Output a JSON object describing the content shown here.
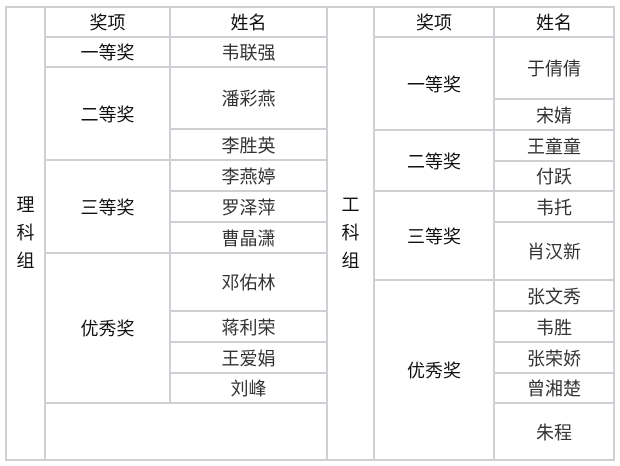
{
  "header": {
    "award": "奖项",
    "name": "姓名"
  },
  "left": {
    "group_chars": [
      "理",
      "科",
      "组"
    ],
    "awards": [
      "一等奖",
      "二等奖",
      "三等奖",
      "优秀奖"
    ],
    "names": [
      "韦联强",
      "潘彩燕",
      "李胜英",
      "李燕婷",
      "罗泽萍",
      "曹晶潇",
      "邓佑林",
      "蒋利荣",
      "王爱娟",
      "刘峰"
    ]
  },
  "right": {
    "group_chars": [
      "工",
      "科",
      "组"
    ],
    "awards": [
      "一等奖",
      "二等奖",
      "三等奖",
      "优秀奖"
    ],
    "names": [
      "于倩倩",
      "宋婧",
      "王童童",
      "付跃",
      "韦托",
      "肖汉新",
      "张文秀",
      "韦胜",
      "张荣娇",
      "曾湘楚",
      "朱程"
    ]
  }
}
